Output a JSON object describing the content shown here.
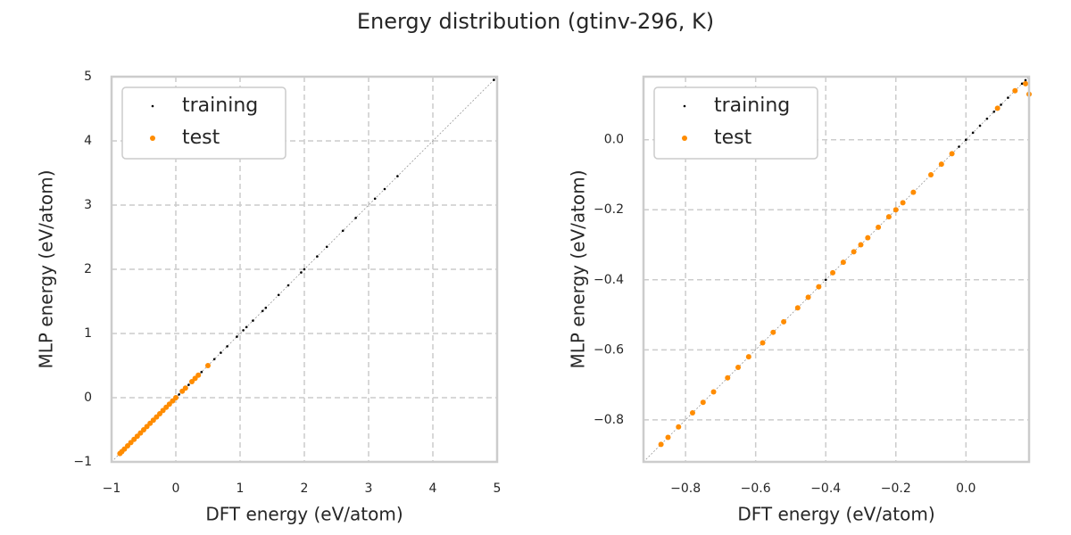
{
  "title": "Energy distribution (gtinv-296, K)",
  "chart_data": [
    {
      "type": "scatter",
      "xlabel": "DFT energy (eV/atom)",
      "ylabel": "MLP energy (eV/atom)",
      "xlim": [
        -1,
        5
      ],
      "ylim": [
        -1,
        5
      ],
      "xticks": [
        {
          "value": -1,
          "label": "−1"
        },
        0,
        1,
        2,
        3,
        4,
        5
      ],
      "yticks": [
        {
          "value": -1,
          "label": "−1"
        },
        0,
        1,
        2,
        3,
        4,
        5
      ],
      "grid": true,
      "legend": "upper left",
      "diagonal": true,
      "series": [
        {
          "name": "training",
          "color": "#000000",
          "x": [
            -0.86,
            -0.6,
            -0.3,
            0.0,
            0.05,
            0.1,
            0.2,
            0.3,
            0.4,
            0.6,
            0.7,
            0.8,
            0.95,
            1.05,
            1.1,
            1.2,
            1.35,
            1.4,
            1.6,
            1.75,
            1.95,
            2.0,
            2.2,
            2.35,
            2.6,
            2.8,
            3.1,
            3.25,
            3.45,
            4.95
          ],
          "values": [
            -0.86,
            -0.6,
            -0.3,
            0.0,
            0.05,
            0.1,
            0.2,
            0.3,
            0.4,
            0.6,
            0.7,
            0.8,
            0.95,
            1.05,
            1.1,
            1.2,
            1.35,
            1.4,
            1.6,
            1.75,
            1.95,
            2.0,
            2.2,
            2.35,
            2.6,
            2.8,
            3.1,
            3.25,
            3.45,
            4.95
          ]
        },
        {
          "name": "test",
          "color": "#ff8c00",
          "x": [
            -0.87,
            -0.84,
            -0.8,
            -0.75,
            -0.7,
            -0.65,
            -0.6,
            -0.55,
            -0.5,
            -0.45,
            -0.4,
            -0.35,
            -0.3,
            -0.25,
            -0.2,
            -0.15,
            -0.1,
            -0.05,
            0.0,
            0.1,
            0.15,
            0.25,
            0.3,
            0.35,
            0.5
          ],
          "values": [
            -0.87,
            -0.84,
            -0.8,
            -0.75,
            -0.7,
            -0.65,
            -0.6,
            -0.55,
            -0.5,
            -0.45,
            -0.4,
            -0.35,
            -0.3,
            -0.25,
            -0.2,
            -0.15,
            -0.1,
            -0.05,
            0.0,
            0.1,
            0.15,
            0.25,
            0.3,
            0.35,
            0.5
          ]
        }
      ]
    },
    {
      "type": "scatter",
      "xlabel": "DFT energy (eV/atom)",
      "ylabel": "MLP energy (eV/atom)",
      "xlim": [
        -0.92,
        0.18
      ],
      "ylim": [
        -0.92,
        0.18
      ],
      "xticks": [
        {
          "value": -0.8,
          "label": "−0.8"
        },
        {
          "value": -0.6,
          "label": "−0.6"
        },
        {
          "value": -0.4,
          "label": "−0.4"
        },
        {
          "value": -0.2,
          "label": "−0.2"
        },
        {
          "value": 0,
          "label": "0.0"
        }
      ],
      "yticks": [
        {
          "value": -0.8,
          "label": "−0.8"
        },
        {
          "value": -0.6,
          "label": "−0.6"
        },
        {
          "value": -0.4,
          "label": "−0.4"
        },
        {
          "value": -0.2,
          "label": "−0.2"
        },
        {
          "value": 0,
          "label": "0.0"
        }
      ],
      "grid": true,
      "legend": "upper left",
      "diagonal": true,
      "series": [
        {
          "name": "training",
          "color": "#000000",
          "x": [
            -0.4,
            -0.38,
            -0.25,
            -0.2,
            -0.1,
            -0.02,
            0.0,
            0.02,
            0.04,
            0.06,
            0.08,
            0.1,
            0.12,
            0.14,
            0.16,
            0.17
          ],
          "values": [
            -0.4,
            -0.38,
            -0.25,
            -0.2,
            -0.1,
            -0.02,
            0.0,
            0.02,
            0.04,
            0.06,
            0.08,
            0.1,
            0.12,
            0.14,
            0.16,
            0.17
          ]
        },
        {
          "name": "test",
          "color": "#ff8c00",
          "x": [
            -0.87,
            -0.85,
            -0.82,
            -0.78,
            -0.75,
            -0.72,
            -0.68,
            -0.65,
            -0.62,
            -0.58,
            -0.55,
            -0.52,
            -0.48,
            -0.45,
            -0.42,
            -0.38,
            -0.35,
            -0.32,
            -0.3,
            -0.28,
            -0.25,
            -0.22,
            -0.2,
            -0.18,
            -0.15,
            -0.1,
            -0.07,
            -0.04,
            0.09,
            0.14,
            0.17,
            0.18
          ],
          "values": [
            -0.87,
            -0.85,
            -0.82,
            -0.78,
            -0.75,
            -0.72,
            -0.68,
            -0.65,
            -0.62,
            -0.58,
            -0.55,
            -0.52,
            -0.48,
            -0.45,
            -0.42,
            -0.38,
            -0.35,
            -0.32,
            -0.3,
            -0.28,
            -0.25,
            -0.22,
            -0.2,
            -0.18,
            -0.15,
            -0.1,
            -0.07,
            -0.04,
            0.09,
            0.14,
            0.16,
            0.13
          ]
        }
      ]
    }
  ]
}
